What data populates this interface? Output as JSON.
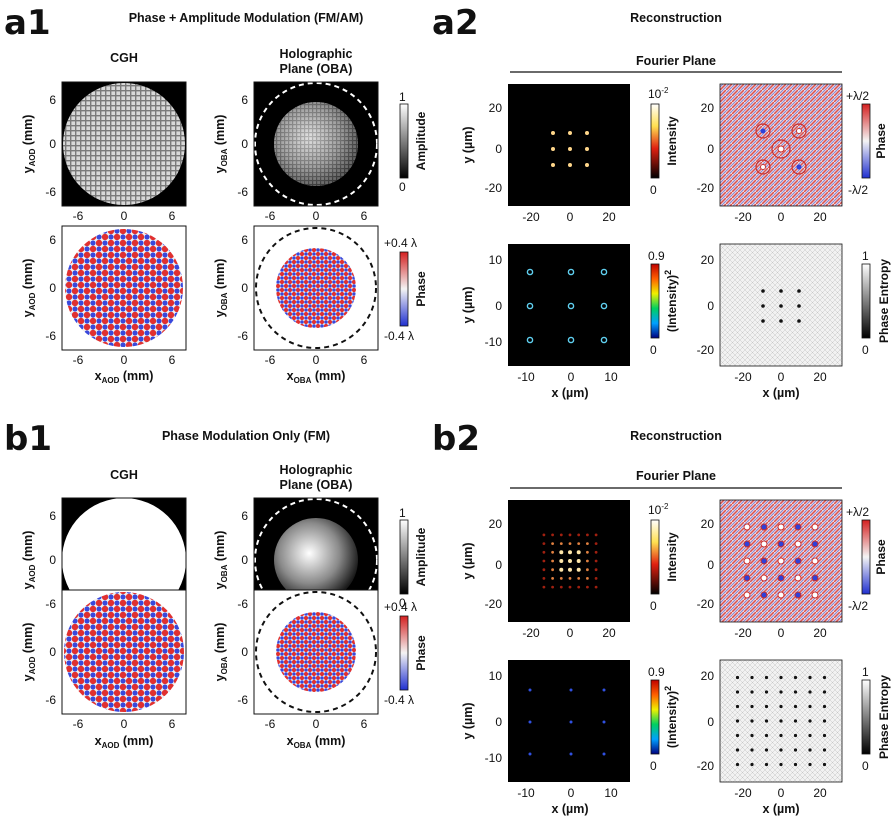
{
  "figure": {
    "a1": {
      "label": "a1",
      "title": "Phase + Amplitude Modulation (FM/AM)",
      "col1_title": "CGH",
      "col2_title_line1": "Holographic",
      "col2_title_line2": "Plane (OBA)"
    },
    "a2": {
      "label": "a2",
      "title": "Reconstruction",
      "fourier_title": "Fourier Plane"
    },
    "b1": {
      "label": "b1",
      "title": "Phase Modulation Only (FM)",
      "col1_title": "CGH",
      "col2_title_line1": "Holographic",
      "col2_title_line2": "Plane (OBA)"
    },
    "b2": {
      "label": "b2",
      "title": "Reconstruction",
      "fourier_title": "Fourier Plane"
    },
    "axes": {
      "y_prefix": "y",
      "x_prefix": "x",
      "aod_sub": "AOD",
      "oba_sub": "OBA",
      "unit_mm": " (mm)",
      "y_um": "y (µm)",
      "x_um": "x (µm)",
      "ticks_mm": [
        "6",
        "0",
        "-6"
      ],
      "ticks_mm_x": [
        "-6",
        "0",
        "6"
      ],
      "ticks_um_20": [
        "20",
        "0",
        "-20"
      ],
      "ticks_um_20_x": [
        "-20",
        "0",
        "20"
      ],
      "ticks_um_10": [
        "10",
        "0",
        "-10"
      ],
      "ticks_um_10_x": [
        "-10",
        "0",
        "10"
      ]
    },
    "colorbars": {
      "amplitude": {
        "label": "Amplitude",
        "max": "1",
        "min": "0"
      },
      "phase_mm": {
        "label": "Phase",
        "max": "+0.4 λ",
        "min": "-0.4 λ"
      },
      "intensity": {
        "label": "Intensity",
        "max": "10",
        "max_exp": "-2",
        "min": "0"
      },
      "phase_um": {
        "label": "Phase",
        "max": "+λ/2",
        "min": "-λ/2"
      },
      "intensity_sq": {
        "label": "(Intensity)",
        "label_exp": "2",
        "max": "0.9",
        "min": "0"
      },
      "entropy": {
        "label": "Phase Entropy",
        "max": "1",
        "min": "0"
      }
    },
    "colors": {
      "red": "#e03030",
      "blue": "#3040d8",
      "spot_a": "#ffd68a",
      "spot_b": "#60d0f0"
    }
  }
}
